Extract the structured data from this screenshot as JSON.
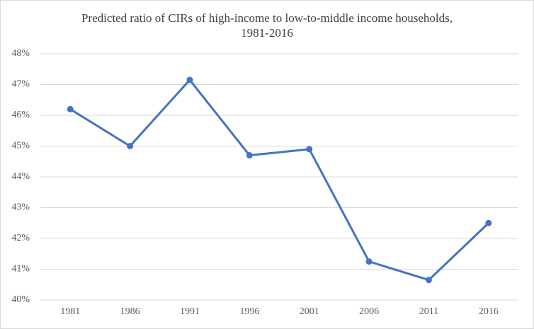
{
  "chart_data": {
    "type": "line",
    "title": [
      "Predicted ratio of CIRs of high-income to low-to-middle income households,",
      "1981-2016"
    ],
    "categories": [
      "1981",
      "1986",
      "1991",
      "1996",
      "2001",
      "2006",
      "2011",
      "2016"
    ],
    "series": [
      {
        "name": "Predicted ratio",
        "color": "#4472c4",
        "values": [
          46.2,
          45.0,
          47.15,
          44.7,
          44.9,
          41.25,
          40.65,
          42.5
        ]
      }
    ],
    "ylim": [
      40,
      48
    ],
    "yticks": [
      {
        "value": 40,
        "label": "40%"
      },
      {
        "value": 41,
        "label": "41%"
      },
      {
        "value": 42,
        "label": "42%"
      },
      {
        "value": 43,
        "label": "43%"
      },
      {
        "value": 44,
        "label": "44%"
      },
      {
        "value": 45,
        "label": "45%"
      },
      {
        "value": 46,
        "label": "46%"
      },
      {
        "value": 47,
        "label": "47%"
      },
      {
        "value": 48,
        "label": "48%"
      }
    ],
    "grid": true
  }
}
